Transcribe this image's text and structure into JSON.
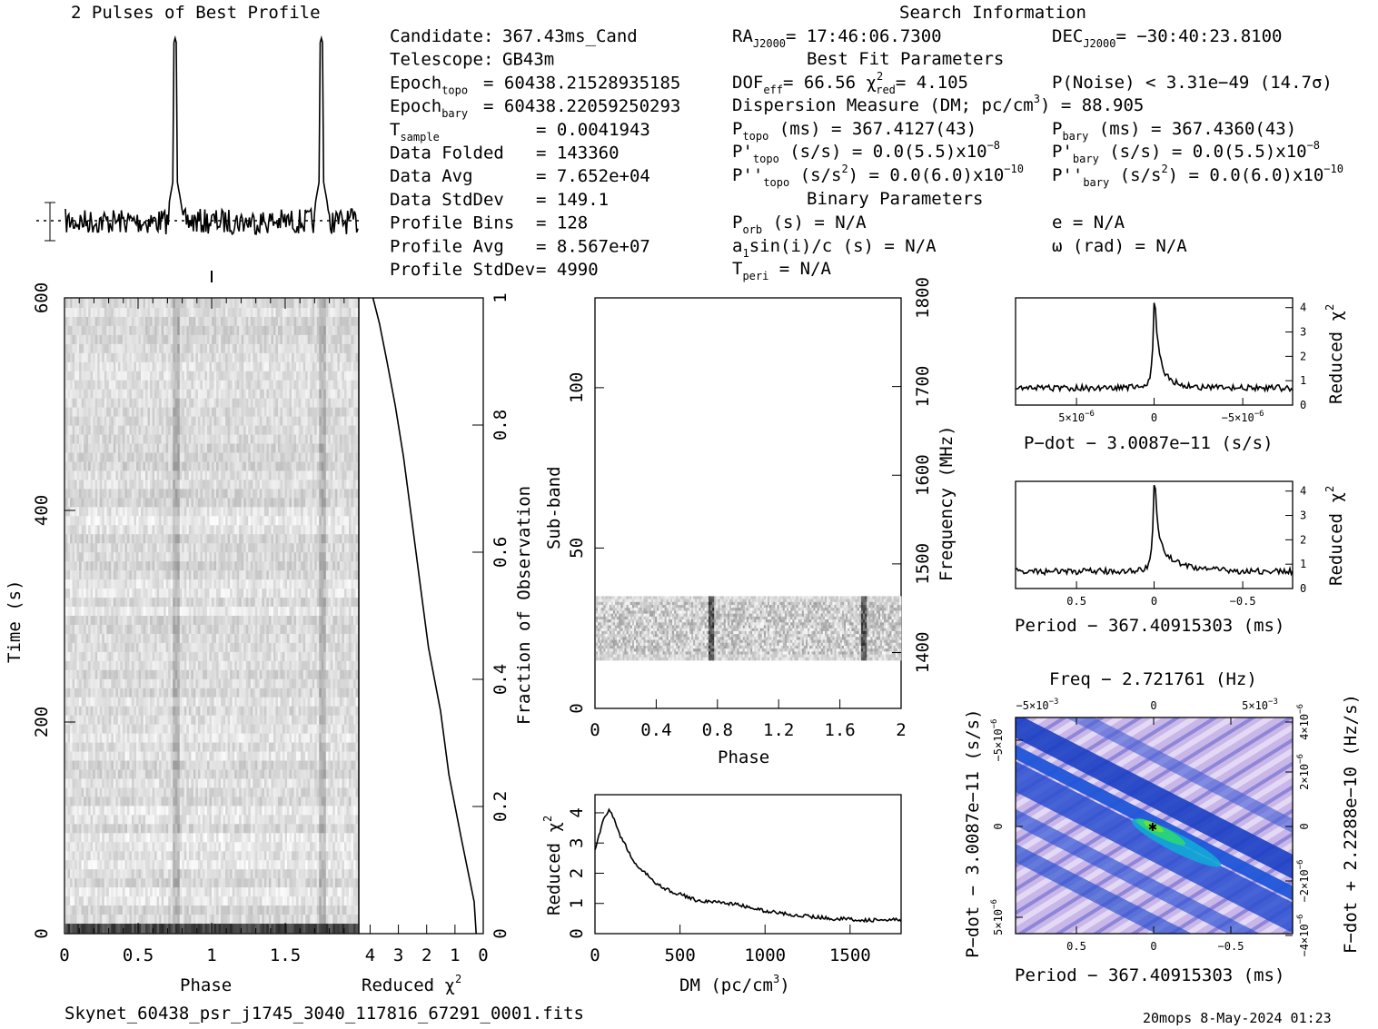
{
  "header": {
    "left_title": "2 Pulses of Best Profile",
    "right_title": "Search Information",
    "footer_file": "Skynet_60438_psr_j1745_3040_117816_67291_0001.fits",
    "footer_date": "20mops   8-May-2024 01:23"
  },
  "info": {
    "col1": [
      {
        "label": "Candidate:",
        "sub": "",
        "value": "367.43ms_Cand"
      },
      {
        "label": "Telescope:",
        "sub": "",
        "value": "GB43m"
      },
      {
        "label": "Epoch",
        "sub": "topo",
        "value": "= 60438.21528935185"
      },
      {
        "label": "Epoch",
        "sub": "bary",
        "value": "= 60438.22059250293"
      },
      {
        "label": "T",
        "sub": "sample",
        "value": "=  0.0041943"
      },
      {
        "label": "Data Folded",
        "sub": "",
        "value": "=  143360"
      },
      {
        "label": "Data Avg",
        "sub": "",
        "value": "=  7.652e+04"
      },
      {
        "label": "Data StdDev",
        "sub": "",
        "value": "=  149.1"
      },
      {
        "label": "Profile Bins",
        "sub": "",
        "value": "=  128"
      },
      {
        "label": "Profile Avg",
        "sub": "",
        "value": "=  8.567e+07"
      },
      {
        "label": "Profile StdDev",
        "sub": "",
        "value": "=  4990"
      }
    ],
    "ra": {
      "label": "RA",
      "sub": "J2000",
      "value": "= 17:46:06.7300"
    },
    "dec": {
      "label": "DEC",
      "sub": "J2000",
      "value": "= −30:40:23.8100"
    },
    "best_fit_title": "Best Fit Parameters",
    "dof": "DOF",
    "dof_sub": "eff",
    "dof_value": "= 66.56",
    "chi_label": "χ",
    "chi_sup": "2",
    "chi_sub": "red",
    "chi_value": "= 4.105",
    "pnoise": "P(Noise) < 3.31e−49   (14.7σ)",
    "dm_line": "Dispersion Measure (DM; pc/cm",
    "dm_sup": "3",
    "dm_value": ") = 88.905",
    "ptopo": {
      "label": "P",
      "sub": "topo",
      "value": " (ms) =  367.4127(43)"
    },
    "pbary": {
      "label": "P",
      "sub": "bary",
      "value": " (ms) =  367.4360(43)"
    },
    "pdtopo": {
      "label": "P'",
      "sub": "topo",
      "value": " (s/s) = 0.0(5.5)x10",
      "exp": "−8"
    },
    "pdbary": {
      "label": "P'",
      "sub": "bary",
      "value": " (s/s) = 0.0(5.5)x10",
      "exp": "−8"
    },
    "pddtopo": {
      "label": "P''",
      "sub": "topo",
      "value": " (s/s",
      "sup": "2",
      "value2": ") = 0.0(6.0)x10",
      "exp": "−10"
    },
    "pddbary": {
      "label": "P''",
      "sub": "bary",
      "value": " (s/s",
      "sup": "2",
      "value2": ") = 0.0(6.0)x10",
      "exp": "−10"
    },
    "binary_title": "Binary Parameters",
    "porb": {
      "label": "P",
      "sub": "orb",
      "value": " (s) = N/A"
    },
    "e": "e = N/A",
    "asini": {
      "label": "a",
      "sub": "1",
      "value": "sin(i)/c (s) = N/A"
    },
    "omega": "ω (rad) = N/A",
    "tperi": {
      "label": "T",
      "sub": "peri",
      "value": " = N/A"
    }
  },
  "chart_data": [
    {
      "type": "line",
      "name": "profile",
      "title": "2 Pulses of Best Profile",
      "x": "phase 0-2",
      "peaks": [
        0.75,
        1.75
      ]
    },
    {
      "type": "heatmap",
      "name": "time-phase",
      "xlabel": "Phase",
      "ylabel": "Time (s)",
      "xlim": [
        0,
        2
      ],
      "ylim": [
        0,
        600
      ],
      "xticks": [
        "0",
        "0.5",
        "1",
        "1.5"
      ],
      "yticks": [
        "0",
        "200",
        "400",
        "600"
      ]
    },
    {
      "type": "line",
      "name": "reduced-chi2-vs-fraction",
      "xlabel": "Reduced χ",
      "xlabel_sup": "2",
      "ylabel": "Fraction of Observation",
      "xticks": [
        "4",
        "3",
        "2",
        "1",
        "0"
      ],
      "yticks": [
        "0",
        "0.2",
        "0.4",
        "0.6",
        "0.8",
        "1"
      ],
      "x": [
        0.25,
        0.35,
        0.8,
        1.2,
        1.5,
        1.9,
        2.2,
        2.5,
        2.8,
        3.1,
        3.4,
        3.7,
        3.9
      ],
      "y": [
        0.0,
        0.05,
        0.15,
        0.25,
        0.35,
        0.45,
        0.55,
        0.65,
        0.75,
        0.83,
        0.9,
        0.96,
        1.0
      ]
    },
    {
      "type": "heatmap",
      "name": "subband-phase",
      "xlabel": "Phase",
      "ylabel": "Sub-band",
      "ylabel_right": "Frequency (MHz)",
      "xticks": [
        "0",
        "0.4",
        "0.8",
        "1.2",
        "1.6",
        "2"
      ],
      "yticks": [
        "0",
        "50",
        "100"
      ],
      "yticks_right": [
        "1400",
        "1500",
        "1600",
        "1700",
        "1800"
      ],
      "band": [
        15,
        35
      ]
    },
    {
      "type": "line",
      "name": "dm-chi2",
      "xlabel": "DM (pc/cm",
      "xlabel_sup": "3",
      "xlabel_end": ")",
      "ylabel": "Reduced χ",
      "ylabel_sup": "2",
      "xticks": [
        "0",
        "500",
        "1000",
        "1500"
      ],
      "yticks": [
        "0",
        "1",
        "2",
        "3",
        "4"
      ],
      "x": [
        0,
        50,
        88.9,
        150,
        250,
        400,
        600,
        800,
        1000,
        1200,
        1400,
        1600,
        1800
      ],
      "y": [
        2.8,
        3.8,
        4.1,
        3.2,
        2.2,
        1.5,
        1.1,
        1.0,
        0.75,
        0.6,
        0.5,
        0.45,
        0.45
      ]
    },
    {
      "type": "line",
      "name": "pdot-chi2",
      "xlabel": "P−dot − 3.0087e−11 (s/s)",
      "ylabel": "Reduced χ",
      "ylabel_sup": "2",
      "xticks": [
        "5×10",
        "0",
        "−5×10"
      ],
      "xticks_exp": "−6",
      "yticks": [
        "0",
        "1",
        "2",
        "3",
        "4"
      ]
    },
    {
      "type": "line",
      "name": "period-chi2",
      "xlabel": "Period − 367.40915303 (ms)",
      "ylabel": "Reduced χ",
      "ylabel_sup": "2",
      "xticks": [
        "0.5",
        "0",
        "−0.5"
      ],
      "yticks": [
        "0",
        "1",
        "2",
        "3",
        "4"
      ]
    },
    {
      "type": "heatmap",
      "name": "p-pdot",
      "title": "Freq − 2.721761 (Hz)",
      "xlabel": "Period − 367.40915303 (ms)",
      "ylabel": "P−dot − 3.0087e−11 (s/s)",
      "ylabel_right": "F−dot + 2.2288e−10 (Hz/s)",
      "xticks": [
        "0.5",
        "0",
        "−0.5"
      ],
      "xticks_top": [
        "−5×10",
        "0",
        "5×10"
      ],
      "xticks_top_exp": "−3",
      "yticks": [
        "−5×10",
        "0",
        "5×10"
      ],
      "yticks_exp": "−6",
      "yticks_right": [
        "−4×10",
        "−2×10",
        "0",
        "2×10",
        "4×10"
      ],
      "yticks_right_exp": "−6"
    }
  ],
  "colors": {
    "heat_low": "#c8b7e8",
    "heat_mid": "#1b47c8",
    "heat_high": "#22c86a",
    "gray": "#666666"
  }
}
